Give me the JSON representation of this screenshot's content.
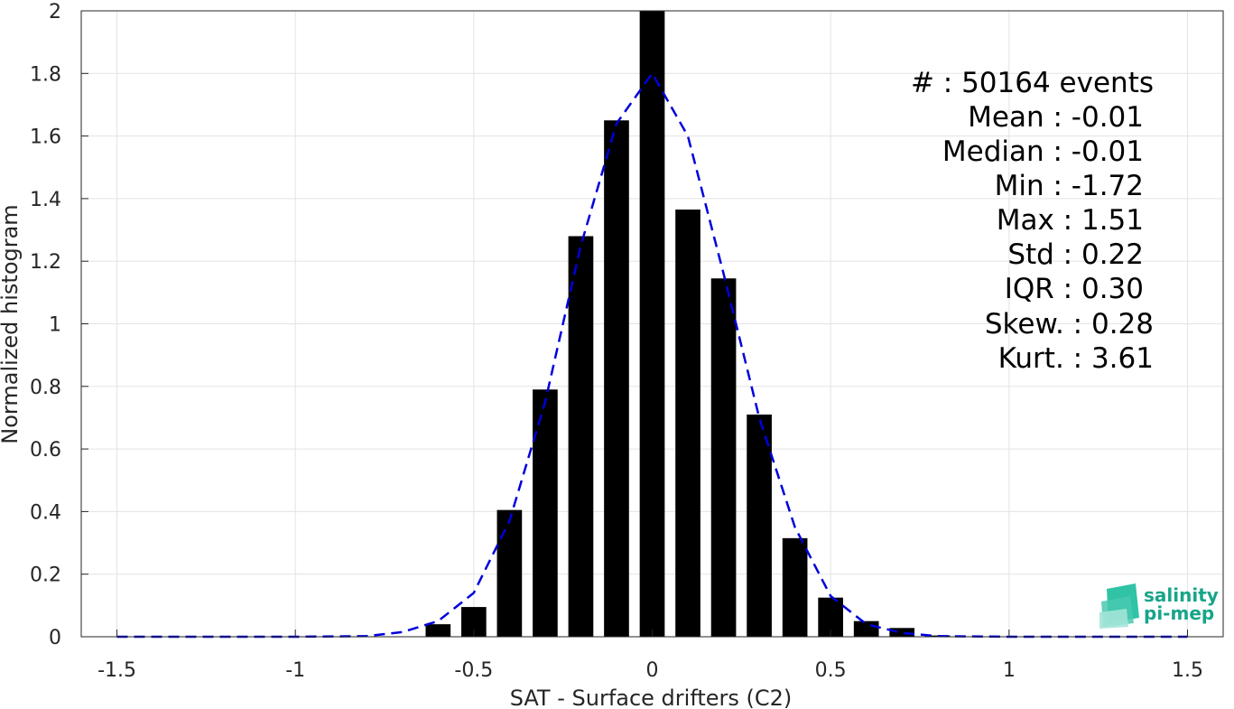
{
  "chart_data": {
    "type": "bar",
    "xlabel": "SAT - Surface drifters (C2)",
    "ylabel": "Normalized histogram",
    "xlim": [
      -1.6,
      1.6
    ],
    "ylim": [
      0,
      2
    ],
    "xticks": [
      -1.5,
      -1,
      -0.5,
      0,
      0.5,
      1,
      1.5
    ],
    "xtick_labels": [
      "-1.5",
      "-1",
      "-0.5",
      "0",
      "0.5",
      "1",
      "1.5"
    ],
    "yticks": [
      0,
      0.2,
      0.4,
      0.6,
      0.8,
      1,
      1.2,
      1.4,
      1.6,
      1.8,
      2
    ],
    "ytick_labels": [
      "0",
      "0.2",
      "0.4",
      "0.6",
      "0.8",
      "1",
      "1.2",
      "1.4",
      "1.6",
      "1.8",
      "2"
    ],
    "grid": true,
    "bar_width": 0.07,
    "bar_color": "#000000",
    "bars": [
      {
        "x": -0.6,
        "y": 0.04
      },
      {
        "x": -0.5,
        "y": 0.095
      },
      {
        "x": -0.4,
        "y": 0.405
      },
      {
        "x": -0.3,
        "y": 0.79
      },
      {
        "x": -0.2,
        "y": 1.28
      },
      {
        "x": -0.1,
        "y": 1.65
      },
      {
        "x": 0.0,
        "y": 2.0
      },
      {
        "x": 0.1,
        "y": 1.365
      },
      {
        "x": 0.2,
        "y": 1.145
      },
      {
        "x": 0.3,
        "y": 0.71
      },
      {
        "x": 0.4,
        "y": 0.315
      },
      {
        "x": 0.5,
        "y": 0.125
      },
      {
        "x": 0.6,
        "y": 0.05
      },
      {
        "x": 0.7,
        "y": 0.028
      },
      {
        "x": 0.8,
        "y": 0.004
      },
      {
        "x": 1.4,
        "y": 0.002
      }
    ],
    "fit_curve": {
      "color": "#0000dd",
      "style": "dashed",
      "points": [
        {
          "x": -1.5,
          "y": 0.0
        },
        {
          "x": -1.0,
          "y": 0.0
        },
        {
          "x": -0.8,
          "y": 0.002
        },
        {
          "x": -0.7,
          "y": 0.015
        },
        {
          "x": -0.6,
          "y": 0.05
        },
        {
          "x": -0.5,
          "y": 0.14
        },
        {
          "x": -0.4,
          "y": 0.37
        },
        {
          "x": -0.3,
          "y": 0.75
        },
        {
          "x": -0.2,
          "y": 1.25
        },
        {
          "x": -0.1,
          "y": 1.64
        },
        {
          "x": 0.0,
          "y": 1.8
        },
        {
          "x": 0.1,
          "y": 1.6
        },
        {
          "x": 0.2,
          "y": 1.16
        },
        {
          "x": 0.3,
          "y": 0.7
        },
        {
          "x": 0.4,
          "y": 0.35
        },
        {
          "x": 0.5,
          "y": 0.13
        },
        {
          "x": 0.6,
          "y": 0.04
        },
        {
          "x": 0.7,
          "y": 0.012
        },
        {
          "x": 0.8,
          "y": 0.002
        },
        {
          "x": 1.0,
          "y": 0.0
        },
        {
          "x": 1.5,
          "y": 0.0
        }
      ]
    }
  },
  "stats": [
    {
      "label": "#  : 50164 events"
    },
    {
      "label": "Mean : -0.01"
    },
    {
      "label": "Median : -0.01"
    },
    {
      "label": "Min : -1.72"
    },
    {
      "label": "Max : 1.51"
    },
    {
      "label": "Std : 0.22"
    },
    {
      "label": "IQR : 0.30"
    },
    {
      "label": "Skew. : 0.28"
    },
    {
      "label": "Kurt. : 3.61"
    }
  ],
  "logo": {
    "line1": "salinity",
    "line2": "pi-mep",
    "color": "#17a589"
  }
}
